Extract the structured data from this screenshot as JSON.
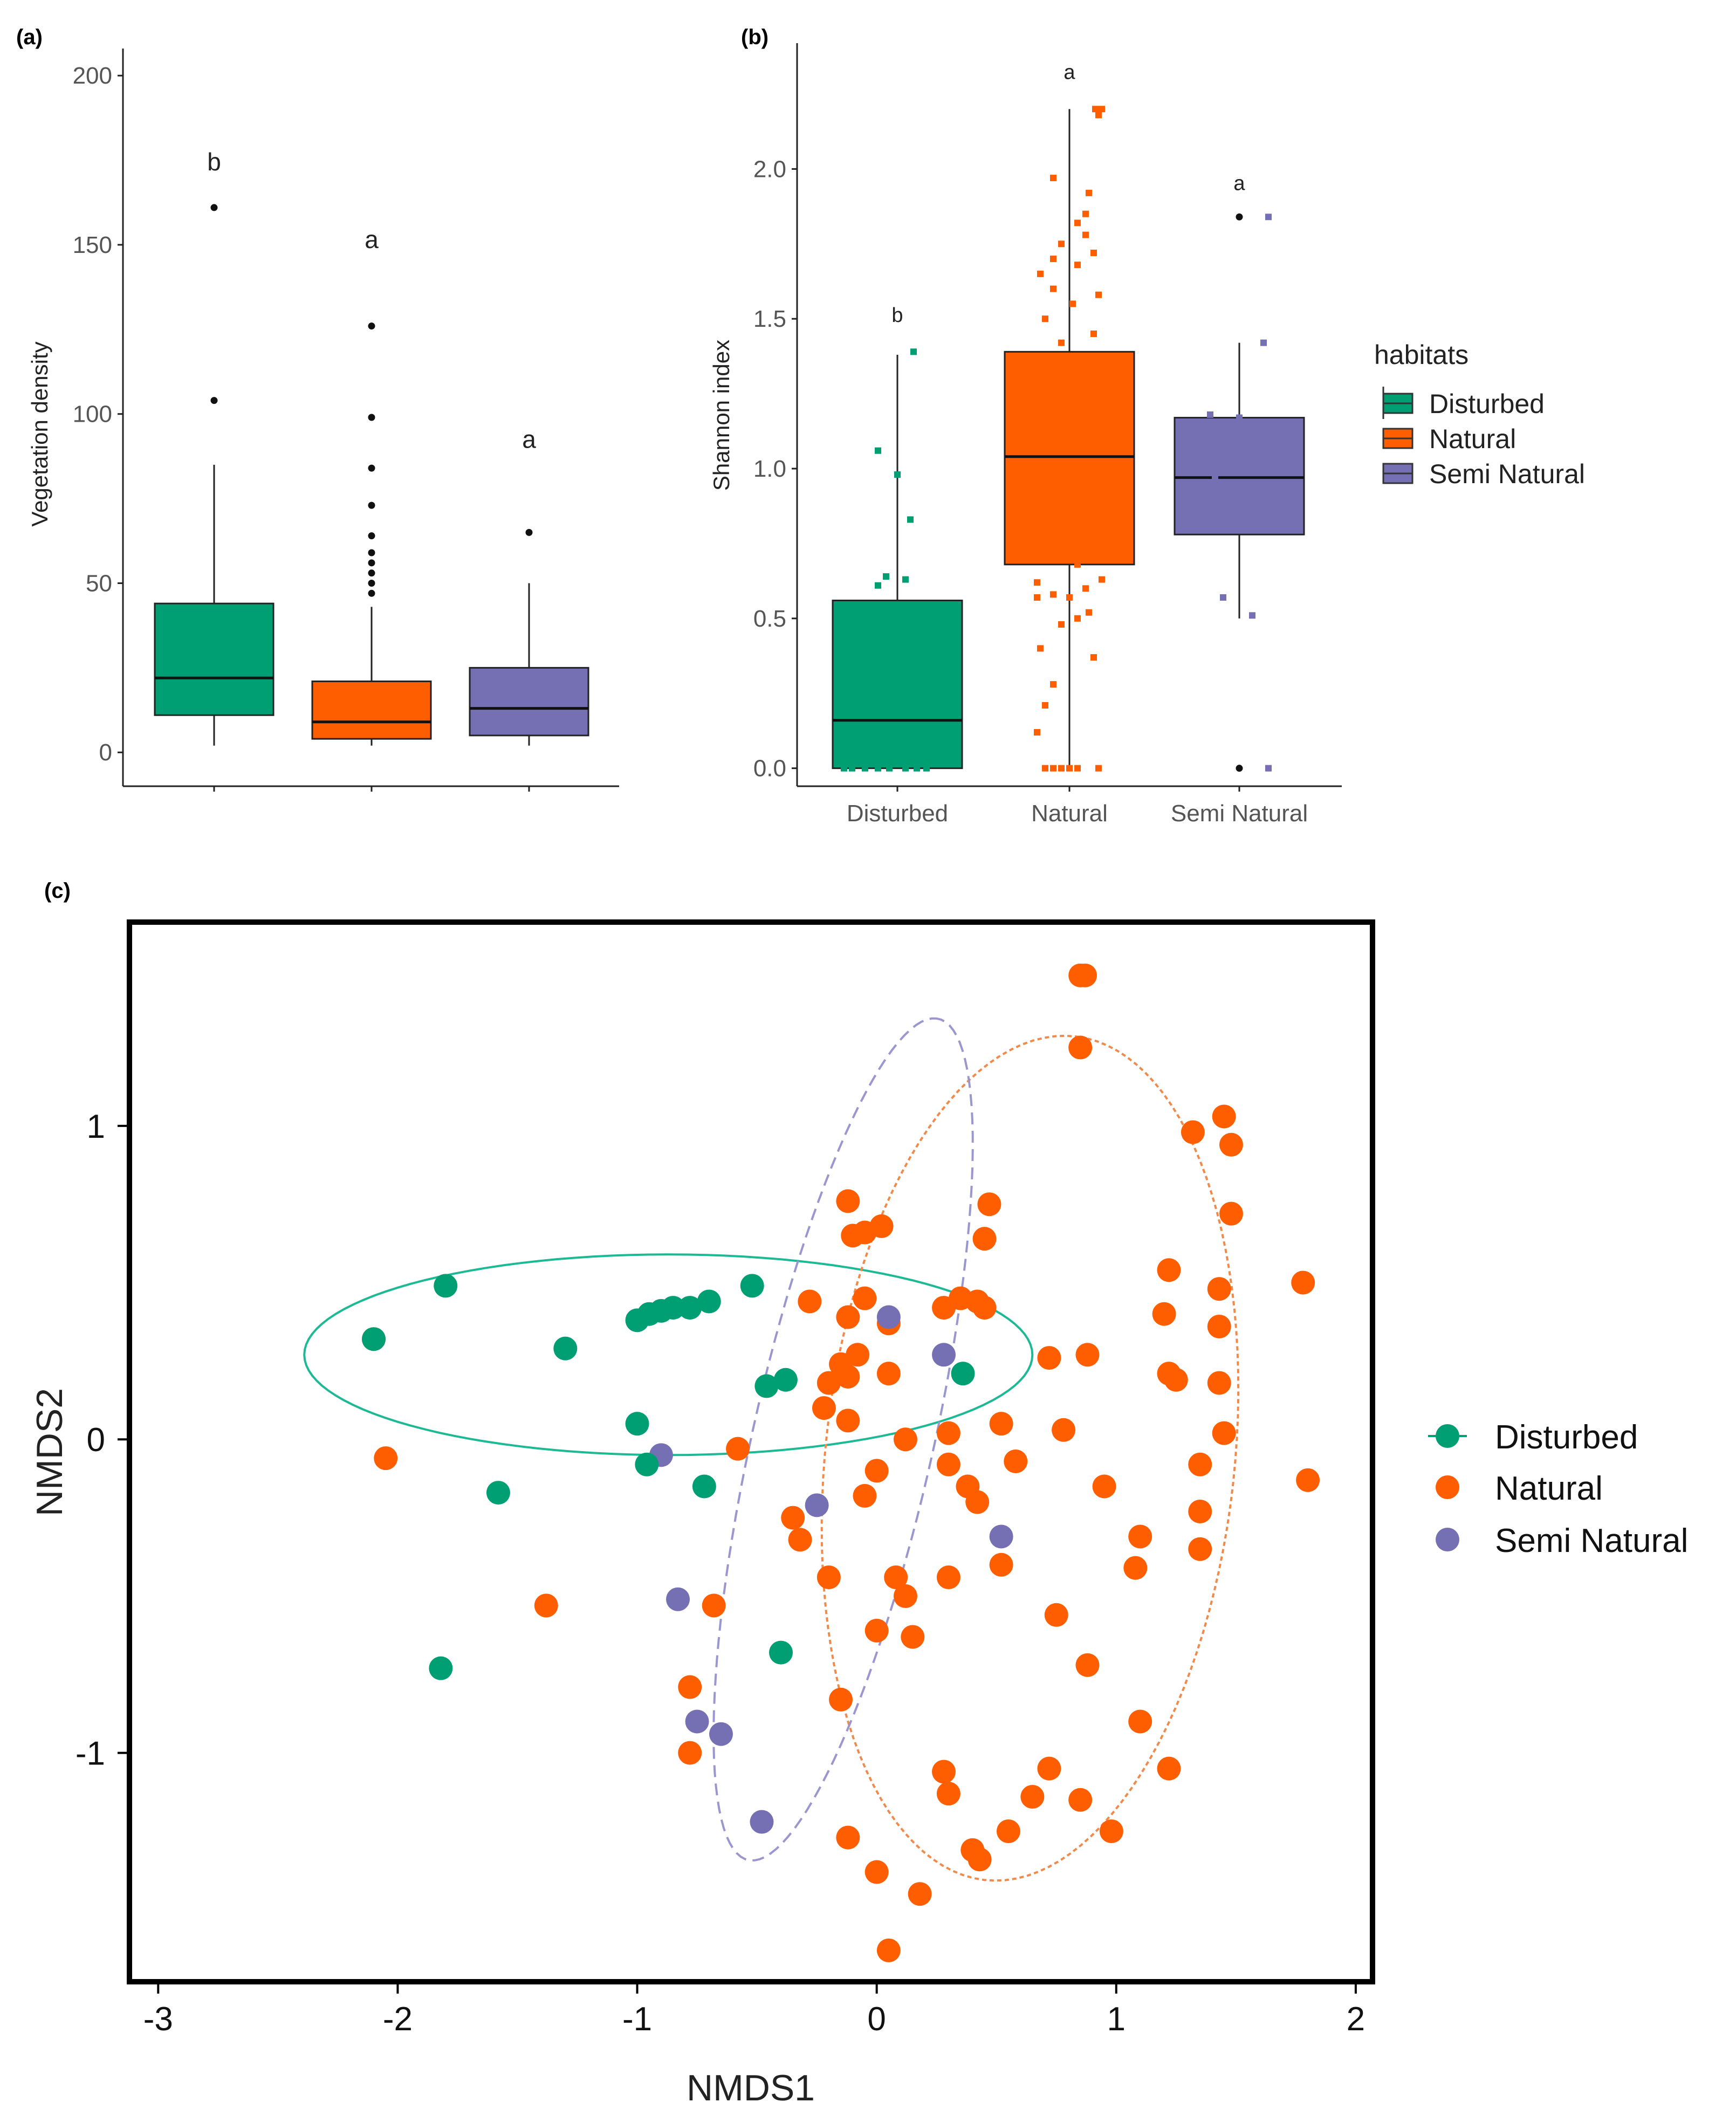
{
  "colors": {
    "Disturbed": "#009E73",
    "Natural": "#FF5E00",
    "Semi Natural": "#7570B3",
    "ellipse_Disturbed": "#1DB994",
    "ellipse_Natural": "#F08A4B",
    "ellipse_Semi Natural": "#9A96CF"
  },
  "panel_labels": {
    "a": "(a)",
    "b": "(b)",
    "c": "(c)"
  },
  "chart_data": [
    {
      "id": "a",
      "type": "box",
      "title": "",
      "xlabel": "",
      "ylabel": "Vegetation density",
      "ylim": [
        -10,
        208
      ],
      "yticks": [
        0,
        50,
        100,
        150,
        200
      ],
      "categories": [
        "Disturbed",
        "Natural",
        "Semi Natural"
      ],
      "show_category_labels": false,
      "boxes": [
        {
          "category": "Disturbed",
          "low": 2,
          "q1": 11,
          "median": 22,
          "q3": 44,
          "high": 85,
          "outliers": [
            104,
            161
          ],
          "letter": "b"
        },
        {
          "category": "Natural",
          "low": 2,
          "q1": 4,
          "median": 9,
          "q3": 21,
          "high": 43,
          "outliers": [
            47,
            50,
            53,
            56,
            59,
            64,
            73,
            84,
            99,
            126
          ],
          "letter": "a"
        },
        {
          "category": "Semi Natural",
          "low": 2,
          "q1": 5,
          "median": 13,
          "q3": 25,
          "high": 50,
          "outliers": [
            65
          ],
          "letter": "a"
        }
      ],
      "letter_y": [
        172,
        149,
        90
      ]
    },
    {
      "id": "b",
      "type": "box",
      "title": "",
      "xlabel": "",
      "ylabel": "Shannon index",
      "ylim": [
        -0.06,
        2.42
      ],
      "yticks": [
        0.0,
        0.5,
        1.0,
        1.5,
        2.0
      ],
      "ytick_labels": [
        "0.0",
        "0.5",
        "1.0",
        "1.5",
        "2.0"
      ],
      "categories": [
        "Disturbed",
        "Natural",
        "Semi Natural"
      ],
      "show_category_labels": true,
      "boxes": [
        {
          "category": "Disturbed",
          "low": 0,
          "q1": 0,
          "median": 0.16,
          "q3": 0.56,
          "high": 1.38,
          "outliers": [],
          "letter": "b"
        },
        {
          "category": "Natural",
          "low": 0,
          "q1": 0.68,
          "median": 1.04,
          "q3": 1.39,
          "high": 2.2,
          "outliers": [],
          "letter": "a"
        },
        {
          "category": "Semi Natural",
          "low": 0.5,
          "q1": 0.78,
          "median": 0.97,
          "q3": 1.17,
          "high": 1.42,
          "outliers": [
            0.0,
            1.84
          ],
          "letter": "a"
        }
      ],
      "letter_y": [
        1.49,
        2.3,
        1.93
      ],
      "jitter": {
        "Disturbed": [
          [
            -0.33,
            0.0
          ],
          [
            -0.28,
            0.0
          ],
          [
            -0.2,
            0.0
          ],
          [
            -0.12,
            0.0
          ],
          [
            -0.05,
            0.0
          ],
          [
            0.05,
            0.0
          ],
          [
            0.12,
            0.0
          ],
          [
            0.18,
            0.0
          ],
          [
            -0.12,
            0.61
          ],
          [
            -0.07,
            0.64
          ],
          [
            0.0,
            0.98
          ],
          [
            0.05,
            0.63
          ],
          [
            0.08,
            0.83
          ],
          [
            -0.12,
            1.06
          ],
          [
            0.1,
            1.39
          ]
        ],
        "Natural": [
          [
            -0.15,
            0.0
          ],
          [
            -0.1,
            0.0
          ],
          [
            -0.05,
            0.0
          ],
          [
            0.0,
            0.0
          ],
          [
            0.05,
            0.0
          ],
          [
            0.18,
            0.0
          ],
          [
            -0.2,
            0.12
          ],
          [
            -0.15,
            0.21
          ],
          [
            -0.1,
            0.28
          ],
          [
            0.15,
            0.37
          ],
          [
            -0.18,
            0.4
          ],
          [
            -0.05,
            0.48
          ],
          [
            0.05,
            0.5
          ],
          [
            0.12,
            0.52
          ],
          [
            -0.2,
            0.57
          ],
          [
            0.0,
            0.57
          ],
          [
            -0.1,
            0.58
          ],
          [
            0.1,
            0.6
          ],
          [
            -0.2,
            0.62
          ],
          [
            0.2,
            0.63
          ],
          [
            0.05,
            0.68
          ],
          [
            -0.15,
            0.7
          ],
          [
            0.18,
            0.72
          ],
          [
            -0.05,
            0.8
          ],
          [
            0.15,
            0.88
          ],
          [
            0.0,
            0.9
          ],
          [
            -0.2,
            0.92
          ],
          [
            0.08,
            1.1
          ],
          [
            -0.12,
            1.2
          ],
          [
            0.1,
            1.35
          ],
          [
            -0.05,
            1.42
          ],
          [
            0.15,
            1.45
          ],
          [
            -0.15,
            1.5
          ],
          [
            0.02,
            1.55
          ],
          [
            0.18,
            1.58
          ],
          [
            -0.1,
            1.6
          ],
          [
            -0.18,
            1.65
          ],
          [
            0.05,
            1.68
          ],
          [
            -0.1,
            1.7
          ],
          [
            0.15,
            1.72
          ],
          [
            -0.05,
            1.75
          ],
          [
            0.1,
            1.78
          ],
          [
            0.05,
            1.82
          ],
          [
            0.1,
            1.85
          ],
          [
            0.12,
            1.92
          ],
          [
            -0.1,
            1.97
          ],
          [
            0.18,
            2.18
          ],
          [
            0.16,
            2.2
          ],
          [
            0.2,
            2.2
          ]
        ],
        "Semi Natural": [
          [
            0.18,
            0.0
          ],
          [
            -0.1,
            0.57
          ],
          [
            0.08,
            0.51
          ],
          [
            0.05,
            0.8
          ],
          [
            0.15,
            1.0
          ],
          [
            0.0,
            1.17
          ],
          [
            0.15,
            1.42
          ],
          [
            0.18,
            1.84
          ],
          [
            -0.18,
            1.18
          ],
          [
            -0.15,
            0.97
          ]
        ]
      }
    },
    {
      "id": "c",
      "type": "scatter",
      "title": "",
      "xlabel": "NMDS1",
      "ylabel": "NMDS2",
      "xlim": [
        -3.12,
        2.07
      ],
      "ylim": [
        -1.73,
        1.65
      ],
      "xticks": [
        -3,
        -2,
        -1,
        0,
        1,
        2
      ],
      "xtick_labels": [
        "-3",
        "-2",
        "-1",
        "0",
        "1",
        "2"
      ],
      "yticks": [
        -1,
        0,
        1
      ],
      "ytick_labels": [
        "-1",
        "0",
        "1"
      ],
      "legend_position": "right",
      "series": [
        {
          "name": "Disturbed",
          "points": [
            [
              -1.8,
              0.49
            ],
            [
              -2.1,
              0.32
            ],
            [
              -1.3,
              0.29
            ],
            [
              -1.0,
              0.38
            ],
            [
              -0.95,
              0.4
            ],
            [
              -0.9,
              0.41
            ],
            [
              -0.85,
              0.42
            ],
            [
              -0.78,
              0.42
            ],
            [
              -0.7,
              0.44
            ],
            [
              -0.52,
              0.49
            ],
            [
              -0.46,
              0.17
            ],
            [
              -1.0,
              0.05
            ],
            [
              -0.96,
              -0.08
            ],
            [
              -0.72,
              -0.15
            ],
            [
              -1.58,
              -0.17
            ],
            [
              -0.38,
              0.19
            ],
            [
              0.36,
              0.21
            ],
            [
              -1.82,
              -0.73
            ],
            [
              -0.4,
              -0.68
            ]
          ]
        },
        {
          "name": "Natural",
          "points": [
            [
              0.85,
              1.48
            ],
            [
              0.87,
              1.48
            ],
            [
              0.85,
              1.25
            ],
            [
              1.45,
              1.03
            ],
            [
              1.32,
              0.98
            ],
            [
              1.48,
              0.94
            ],
            [
              1.48,
              0.72
            ],
            [
              1.22,
              0.54
            ],
            [
              1.43,
              0.48
            ],
            [
              1.78,
              0.5
            ],
            [
              1.2,
              0.4
            ],
            [
              1.43,
              0.36
            ],
            [
              1.25,
              0.19
            ],
            [
              1.22,
              0.21
            ],
            [
              1.43,
              0.18
            ],
            [
              1.45,
              0.02
            ],
            [
              1.35,
              -0.08
            ],
            [
              1.8,
              -0.13
            ],
            [
              1.35,
              -0.23
            ],
            [
              1.1,
              -0.31
            ],
            [
              1.08,
              -0.41
            ],
            [
              1.35,
              -0.35
            ],
            [
              0.95,
              -0.15
            ],
            [
              0.88,
              0.27
            ],
            [
              0.72,
              0.26
            ],
            [
              0.78,
              0.03
            ],
            [
              0.52,
              0.05
            ],
            [
              0.45,
              0.42
            ],
            [
              0.42,
              0.44
            ],
            [
              0.35,
              0.45
            ],
            [
              0.28,
              0.42
            ],
            [
              0.47,
              0.75
            ],
            [
              0.45,
              0.64
            ],
            [
              0.05,
              0.37
            ],
            [
              -0.1,
              0.65
            ],
            [
              -0.12,
              0.76
            ],
            [
              -0.05,
              0.66
            ],
            [
              0.02,
              0.68
            ],
            [
              -0.05,
              0.45
            ],
            [
              -0.12,
              0.39
            ],
            [
              -0.28,
              0.44
            ],
            [
              -0.15,
              0.24
            ],
            [
              -0.08,
              0.27
            ],
            [
              -0.12,
              0.2
            ],
            [
              -0.2,
              0.18
            ],
            [
              -0.22,
              0.1
            ],
            [
              -0.12,
              0.06
            ],
            [
              0.05,
              0.21
            ],
            [
              0.12,
              0.0
            ],
            [
              0.0,
              -0.1
            ],
            [
              -0.05,
              -0.18
            ],
            [
              0.3,
              0.02
            ],
            [
              0.3,
              -0.08
            ],
            [
              0.38,
              -0.15
            ],
            [
              0.42,
              -0.2
            ],
            [
              0.58,
              -0.07
            ],
            [
              0.52,
              -0.4
            ],
            [
              0.75,
              -0.56
            ],
            [
              0.88,
              -0.72
            ],
            [
              1.1,
              -0.9
            ],
            [
              1.22,
              -1.05
            ],
            [
              0.98,
              -1.25
            ],
            [
              0.85,
              -1.15
            ],
            [
              0.72,
              -1.05
            ],
            [
              0.65,
              -1.14
            ],
            [
              0.55,
              -1.25
            ],
            [
              0.28,
              -1.06
            ],
            [
              0.3,
              -1.13
            ],
            [
              0.4,
              -1.31
            ],
            [
              0.43,
              -1.34
            ],
            [
              0.0,
              -1.38
            ],
            [
              0.18,
              -1.45
            ],
            [
              0.05,
              -1.63
            ],
            [
              -0.12,
              -1.27
            ],
            [
              -0.15,
              -0.83
            ],
            [
              0.0,
              -0.61
            ],
            [
              0.15,
              -0.63
            ],
            [
              0.12,
              -0.5
            ],
            [
              0.08,
              -0.44
            ],
            [
              0.3,
              -0.44
            ],
            [
              -0.2,
              -0.44
            ],
            [
              -0.35,
              -0.25
            ],
            [
              -0.32,
              -0.32
            ],
            [
              -0.58,
              -0.03
            ],
            [
              -0.68,
              -0.53
            ],
            [
              -0.78,
              -0.79
            ],
            [
              -0.78,
              -1.0
            ],
            [
              -1.38,
              -0.53
            ],
            [
              -2.05,
              -0.06
            ],
            [
              -2.1,
              0.32
            ]
          ]
        },
        {
          "name": "Semi Natural",
          "points": [
            [
              0.05,
              0.39
            ],
            [
              0.28,
              0.27
            ],
            [
              -0.9,
              -0.05
            ],
            [
              -0.25,
              -0.21
            ],
            [
              0.52,
              -0.31
            ],
            [
              -0.83,
              -0.51
            ],
            [
              -0.75,
              -0.9
            ],
            [
              -0.65,
              -0.94
            ],
            [
              -0.48,
              -1.22
            ]
          ]
        }
      ],
      "ellipses": [
        {
          "group": "Disturbed",
          "center": [
            -0.87,
            0.27
          ],
          "rx": 1.52,
          "ry": 0.32,
          "angle_deg": 0,
          "style": "solid"
        },
        {
          "group": "Natural",
          "center": [
            0.64,
            -0.06
          ],
          "rx": 1.36,
          "ry": 0.85,
          "angle_deg": 80,
          "style": "dotted"
        },
        {
          "group": "Semi Natural",
          "center": [
            -0.14,
            0.0
          ],
          "rx": 1.4,
          "ry": 0.37,
          "angle_deg": 73,
          "style": "dashed"
        }
      ]
    }
  ],
  "legend_b": {
    "title": "habitats",
    "items": [
      "Disturbed",
      "Natural",
      "Semi Natural"
    ]
  },
  "legend_c": {
    "items": [
      "Disturbed",
      "Natural",
      "Semi Natural"
    ]
  }
}
